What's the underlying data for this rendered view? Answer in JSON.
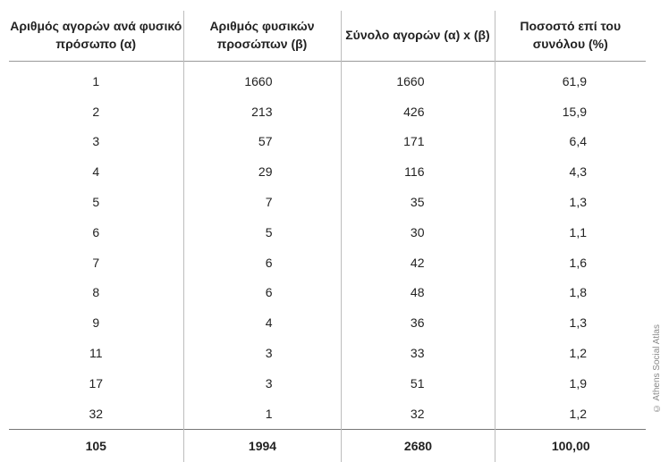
{
  "headers": [
    "Αριθμός αγορών ανά φυσικό πρόσωπο (α)",
    "Αριθμός φυσικών προσώπων (β)",
    "Σύνολο αγορών (α) x (β)",
    "Ποσοστό επί του συνόλου (%)"
  ],
  "rows": [
    [
      "1",
      "1660",
      "1660",
      "61,9"
    ],
    [
      "2",
      "213",
      "426",
      "15,9"
    ],
    [
      "3",
      "57",
      "171",
      "6,4"
    ],
    [
      "4",
      "29",
      "116",
      "4,3"
    ],
    [
      "5",
      "7",
      "35",
      "1,3"
    ],
    [
      "6",
      "5",
      "30",
      "1,1"
    ],
    [
      "7",
      "6",
      "42",
      "1,6"
    ],
    [
      "8",
      "6",
      "48",
      "1,8"
    ],
    [
      "9",
      "4",
      "36",
      "1,3"
    ],
    [
      "11",
      "3",
      "33",
      "1,2"
    ],
    [
      "17",
      "3",
      "51",
      "1,9"
    ],
    [
      "32",
      "1",
      "32",
      "1,2"
    ]
  ],
  "totals": [
    "105",
    "1994",
    "2680",
    "100,00"
  ],
  "credit": "© Athens Social Atlas"
}
